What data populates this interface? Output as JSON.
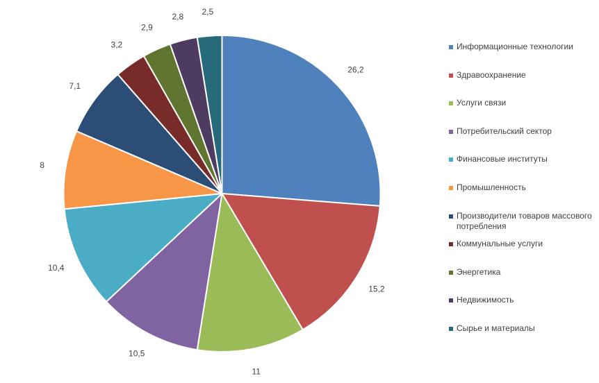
{
  "chart_data": {
    "type": "pie",
    "title": "",
    "categories": [
      "Информационные технологии",
      "Здравоохранение",
      "Услуги связи",
      "Потребительский сектор",
      "Финансовые институты",
      "Промышленность",
      "Производители товаров массового потребления",
      "Коммунальные услуги",
      "Энергетика",
      "Недвижимость",
      "Сырье и материалы"
    ],
    "values": [
      26.2,
      15.2,
      11,
      10.5,
      10.4,
      8,
      7.1,
      3.2,
      2.9,
      2.8,
      2.5
    ],
    "value_labels": [
      "26,2",
      "15,2",
      "11",
      "10,5",
      "10,4",
      "8",
      "7,1",
      "3,2",
      "2,9",
      "2,8",
      "2,5"
    ],
    "colors": [
      "#4f81bd",
      "#c0504d",
      "#9bbb59",
      "#8064a2",
      "#4bacc6",
      "#f79646",
      "#2c4d75",
      "#772c2a",
      "#5f7530",
      "#4d3b62",
      "#276a7c"
    ],
    "legend_position": "right"
  }
}
